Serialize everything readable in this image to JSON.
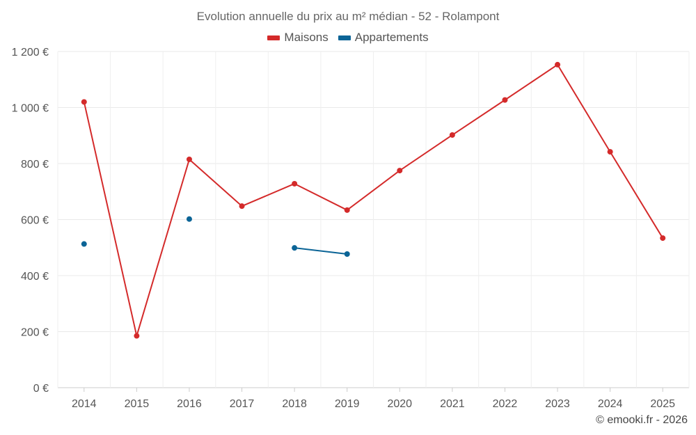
{
  "chart_data": {
    "type": "line",
    "title": "Evolution annuelle du prix au m² médian - 52 - Rolampont",
    "xlabel": "",
    "ylabel": "",
    "categories": [
      "2014",
      "2015",
      "2016",
      "2017",
      "2018",
      "2019",
      "2020",
      "2021",
      "2022",
      "2023",
      "2024",
      "2025"
    ],
    "ylim": [
      0,
      1200
    ],
    "y_ticks": [
      {
        "value": 0,
        "label": "0 €"
      },
      {
        "value": 200,
        "label": "200 €"
      },
      {
        "value": 400,
        "label": "400 €"
      },
      {
        "value": 600,
        "label": "600 €"
      },
      {
        "value": 800,
        "label": "800 €"
      },
      {
        "value": 1000,
        "label": "1 000 €"
      },
      {
        "value": 1200,
        "label": "1 200 €"
      }
    ],
    "grid": true,
    "legend_position": "top-center",
    "series": [
      {
        "name": "Maisons",
        "color": "#d42a2a",
        "values": [
          1020,
          185,
          815,
          648,
          728,
          634,
          775,
          902,
          1027,
          1153,
          842,
          534
        ]
      },
      {
        "name": "Appartements",
        "color": "#0b6496",
        "values": [
          513,
          null,
          602,
          null,
          499,
          477,
          null,
          null,
          null,
          null,
          null,
          null
        ]
      }
    ]
  },
  "credit": "© emooki.fr - 2026"
}
